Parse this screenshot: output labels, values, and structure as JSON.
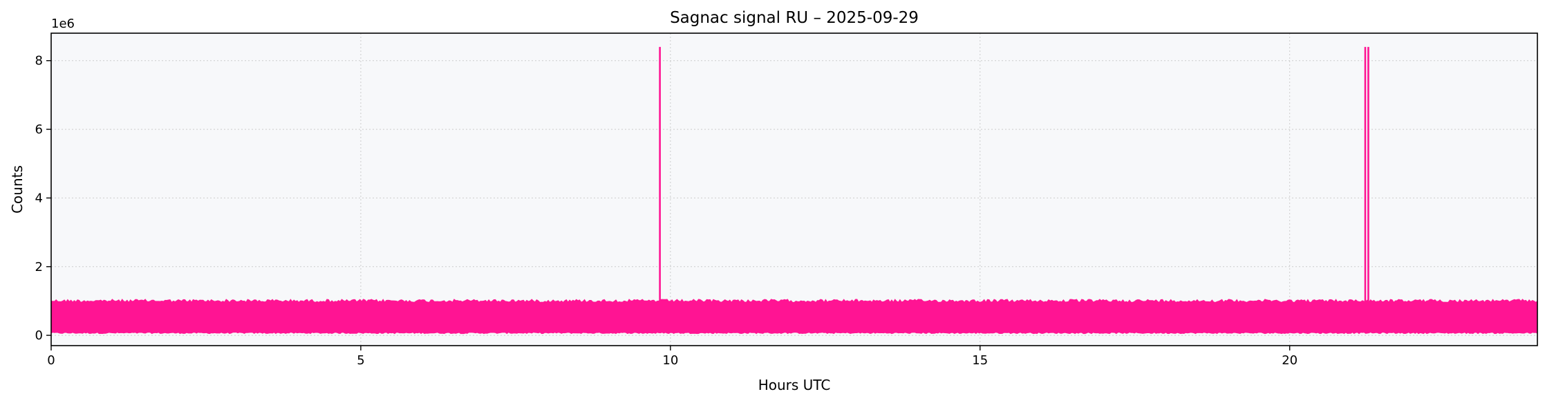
{
  "chart_data": {
    "type": "line",
    "title": "Sagnac signal RU – 2025-09-29",
    "xlabel": "Hours UTC",
    "ylabel": "Counts",
    "y_multiplier_label": "1e6",
    "xlim": [
      0,
      24
    ],
    "ylim": [
      -300000,
      8800000
    ],
    "x_ticks": [
      0,
      5,
      10,
      15,
      20
    ],
    "x_tick_labels": [
      "0",
      "5",
      "10",
      "15",
      "20"
    ],
    "y_ticks": [
      0,
      2000000,
      4000000,
      6000000,
      8000000
    ],
    "y_tick_labels": [
      "0",
      "2",
      "4",
      "6",
      "8"
    ],
    "grid": true,
    "series": [
      {
        "color": "#ff1493",
        "noise_band": {
          "x_range": [
            0,
            24
          ],
          "y_low": 50000,
          "y_high": 1050000
        },
        "spikes": [
          {
            "x": 9.83,
            "y": 8400000
          },
          {
            "x": 21.22,
            "y": 8400000
          },
          {
            "x": 21.27,
            "y": 8400000
          }
        ]
      }
    ]
  }
}
